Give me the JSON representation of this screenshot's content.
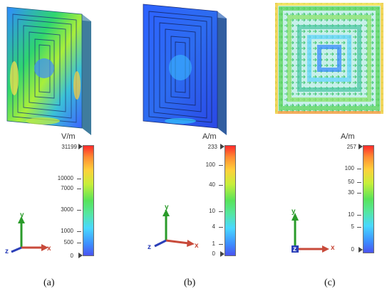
{
  "panels": [
    {
      "id": "a",
      "caption": "(a)",
      "unit": "V/m",
      "ticks": [
        "31199",
        "10000",
        "7000",
        "3000",
        "1000",
        "500",
        "0"
      ],
      "axes": {
        "y": "y",
        "z": "z",
        "x": "x"
      }
    },
    {
      "id": "b",
      "caption": "(b)",
      "unit": "A/m",
      "ticks": [
        "233",
        "100",
        "40",
        "10",
        "4",
        "1",
        "0"
      ],
      "axes": {
        "y": "y",
        "z": "z",
        "x": "x"
      }
    },
    {
      "id": "c",
      "caption": "(c)",
      "unit": "A/m",
      "ticks": [
        "257",
        "100",
        "50",
        "30",
        "10",
        "5",
        "0"
      ],
      "axes": {
        "y": "y",
        "z": "z",
        "x": "x"
      }
    }
  ],
  "colors": {
    "high": "#ff2a2a",
    "mid": "#58e35a",
    "low": "#4a53f0",
    "background": "#ffffff"
  }
}
